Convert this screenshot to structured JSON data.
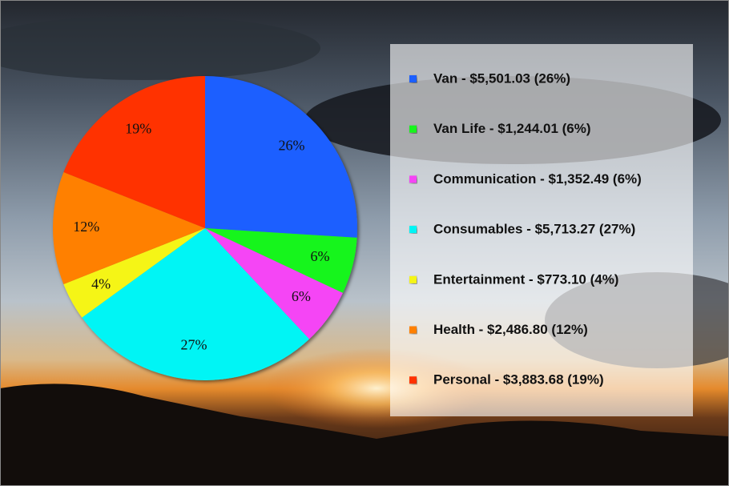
{
  "chart_data": {
    "type": "pie",
    "categories": [
      "Van - $5,501.03 (26%)",
      "Van Life - $1,244.01 (6%)",
      "Communication - $1,352.49 (6%)",
      "Consumables - $5,713.27 (27%)",
      "Entertainment - $773.10 (4%)",
      "Health - $2,486.80 (12%)",
      "Personal - $3,883.68 (19%)"
    ],
    "values": [
      26,
      6,
      6,
      27,
      4,
      12,
      19
    ],
    "value_labels": [
      "26%",
      "6%",
      "6%",
      "27%",
      "4%",
      "12%",
      "19%"
    ],
    "colors": [
      "#1e5eff",
      "#19f51f",
      "#f545f5",
      "#00f5f5",
      "#f5f516",
      "#ff8000",
      "#ff3300"
    ],
    "legend": "right"
  }
}
